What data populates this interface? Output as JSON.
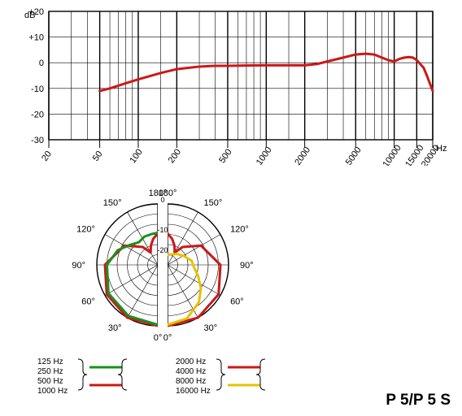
{
  "product_label": "P 5/P 5 S",
  "colors": {
    "background": "#ffffff",
    "grid": "#000000",
    "grid_stroke": 0.6,
    "border_stroke": 1.4,
    "curve_red": "#cc1818",
    "curve_green": "#17921e",
    "curve_yellow": "#e2c400",
    "curve_stroke": 3.0,
    "text": "#000000"
  },
  "freq_response": {
    "type": "line-log-x",
    "db_label": "dB",
    "hz_label": "Hz",
    "ylim": [
      -30,
      20
    ],
    "ytick_step": 10,
    "yticks": [
      "+20",
      "+10",
      "0",
      "-10",
      "-20",
      "-30"
    ],
    "xlim": [
      20,
      20000
    ],
    "xticks": [
      20,
      50,
      100,
      200,
      500,
      1000,
      2000,
      5000,
      10000,
      15000,
      20000
    ],
    "xgrid_minor": [
      30,
      40,
      60,
      70,
      80,
      90,
      150,
      300,
      400,
      600,
      700,
      800,
      900,
      1500,
      3000,
      4000,
      6000,
      7000,
      8000,
      9000
    ],
    "label_fontsize": 11,
    "curve": {
      "color_key": "curve_red",
      "points": [
        [
          50,
          -11
        ],
        [
          60,
          -10
        ],
        [
          80,
          -8
        ],
        [
          100,
          -6.5
        ],
        [
          150,
          -4
        ],
        [
          200,
          -2.5
        ],
        [
          300,
          -1.5
        ],
        [
          400,
          -1.2
        ],
        [
          500,
          -1.2
        ],
        [
          700,
          -1.1
        ],
        [
          1000,
          -1
        ],
        [
          1500,
          -1
        ],
        [
          2000,
          -1
        ],
        [
          2500,
          -0.5
        ],
        [
          3000,
          0.5
        ],
        [
          4000,
          2
        ],
        [
          5000,
          3.2
        ],
        [
          6000,
          3.5
        ],
        [
          7000,
          3.2
        ],
        [
          8000,
          2
        ],
        [
          9000,
          1
        ],
        [
          10000,
          0.5
        ],
        [
          11000,
          1.5
        ],
        [
          12000,
          2
        ],
        [
          13000,
          2.2
        ],
        [
          14000,
          2
        ],
        [
          15000,
          1
        ],
        [
          17000,
          -2
        ],
        [
          18000,
          -5
        ],
        [
          20000,
          -11
        ]
      ]
    }
  },
  "polar": {
    "type": "dual-polar",
    "radius_labels": [
      "0",
      "-10",
      "-20"
    ],
    "angle_labels_left": [
      "0°",
      "30°",
      "60°",
      "90°",
      "120°",
      "150°",
      "180°"
    ],
    "angle_labels_right": [
      "0°",
      "30°",
      "60°",
      "90°",
      "120°",
      "150°",
      "180°"
    ],
    "angle_step": 30,
    "ring_db": [
      0,
      -5,
      -10,
      -15,
      -20,
      -25
    ],
    "label_fontsize": 11,
    "left": {
      "curves": [
        {
          "color_key": "curve_red",
          "points_deg_db": [
            [
              0,
              0
            ],
            [
              30,
              0
            ],
            [
              60,
              -1
            ],
            [
              90,
              -4
            ],
            [
              120,
              -11
            ],
            [
              140,
              -18.5
            ],
            [
              150,
              -23
            ],
            [
              160,
              -20
            ],
            [
              170,
              -17
            ],
            [
              180,
              -14.5
            ]
          ]
        },
        {
          "color_key": "curve_green",
          "points_deg_db": [
            [
              0,
              -0.5
            ],
            [
              30,
              -1
            ],
            [
              60,
              -2
            ],
            [
              90,
              -5
            ],
            [
              110,
              -9
            ],
            [
              125,
              -13
            ],
            [
              140,
              -15.5
            ],
            [
              155,
              -14.6
            ],
            [
              170,
              -14.5
            ],
            [
              180,
              -14.2
            ]
          ]
        }
      ]
    },
    "right": {
      "curves": [
        {
          "color_key": "curve_red",
          "points_deg_db": [
            [
              0,
              0
            ],
            [
              30,
              0
            ],
            [
              60,
              -1
            ],
            [
              90,
              -4
            ],
            [
              120,
              -11
            ],
            [
              140,
              -18.5
            ],
            [
              150,
              -23
            ],
            [
              160,
              -20
            ],
            [
              170,
              -17
            ],
            [
              180,
              -14.5
            ]
          ]
        },
        {
          "color_key": "curve_yellow",
          "points_deg_db": [
            [
              0,
              -0.5
            ],
            [
              20,
              -2
            ],
            [
              40,
              -6
            ],
            [
              55,
              -10
            ],
            [
              70,
              -14
            ],
            [
              85,
              -17
            ],
            [
              100,
              -18
            ],
            [
              120,
              -21
            ],
            [
              140,
              -23
            ],
            [
              160,
              -24.5
            ],
            [
              180,
              -25
            ]
          ]
        }
      ]
    }
  },
  "legend": {
    "font_size": 10,
    "left": {
      "labels": [
        "125 Hz",
        "250 Hz",
        "500 Hz",
        "1000 Hz"
      ],
      "swatches": [
        {
          "color_key": "curve_green"
        },
        {
          "color_key": "curve_red"
        }
      ]
    },
    "right": {
      "labels": [
        "2000 Hz",
        "4000 Hz",
        "8000 Hz",
        "16000 Hz"
      ],
      "swatches": [
        {
          "color_key": "curve_red"
        },
        {
          "color_key": "curve_yellow"
        }
      ]
    }
  }
}
